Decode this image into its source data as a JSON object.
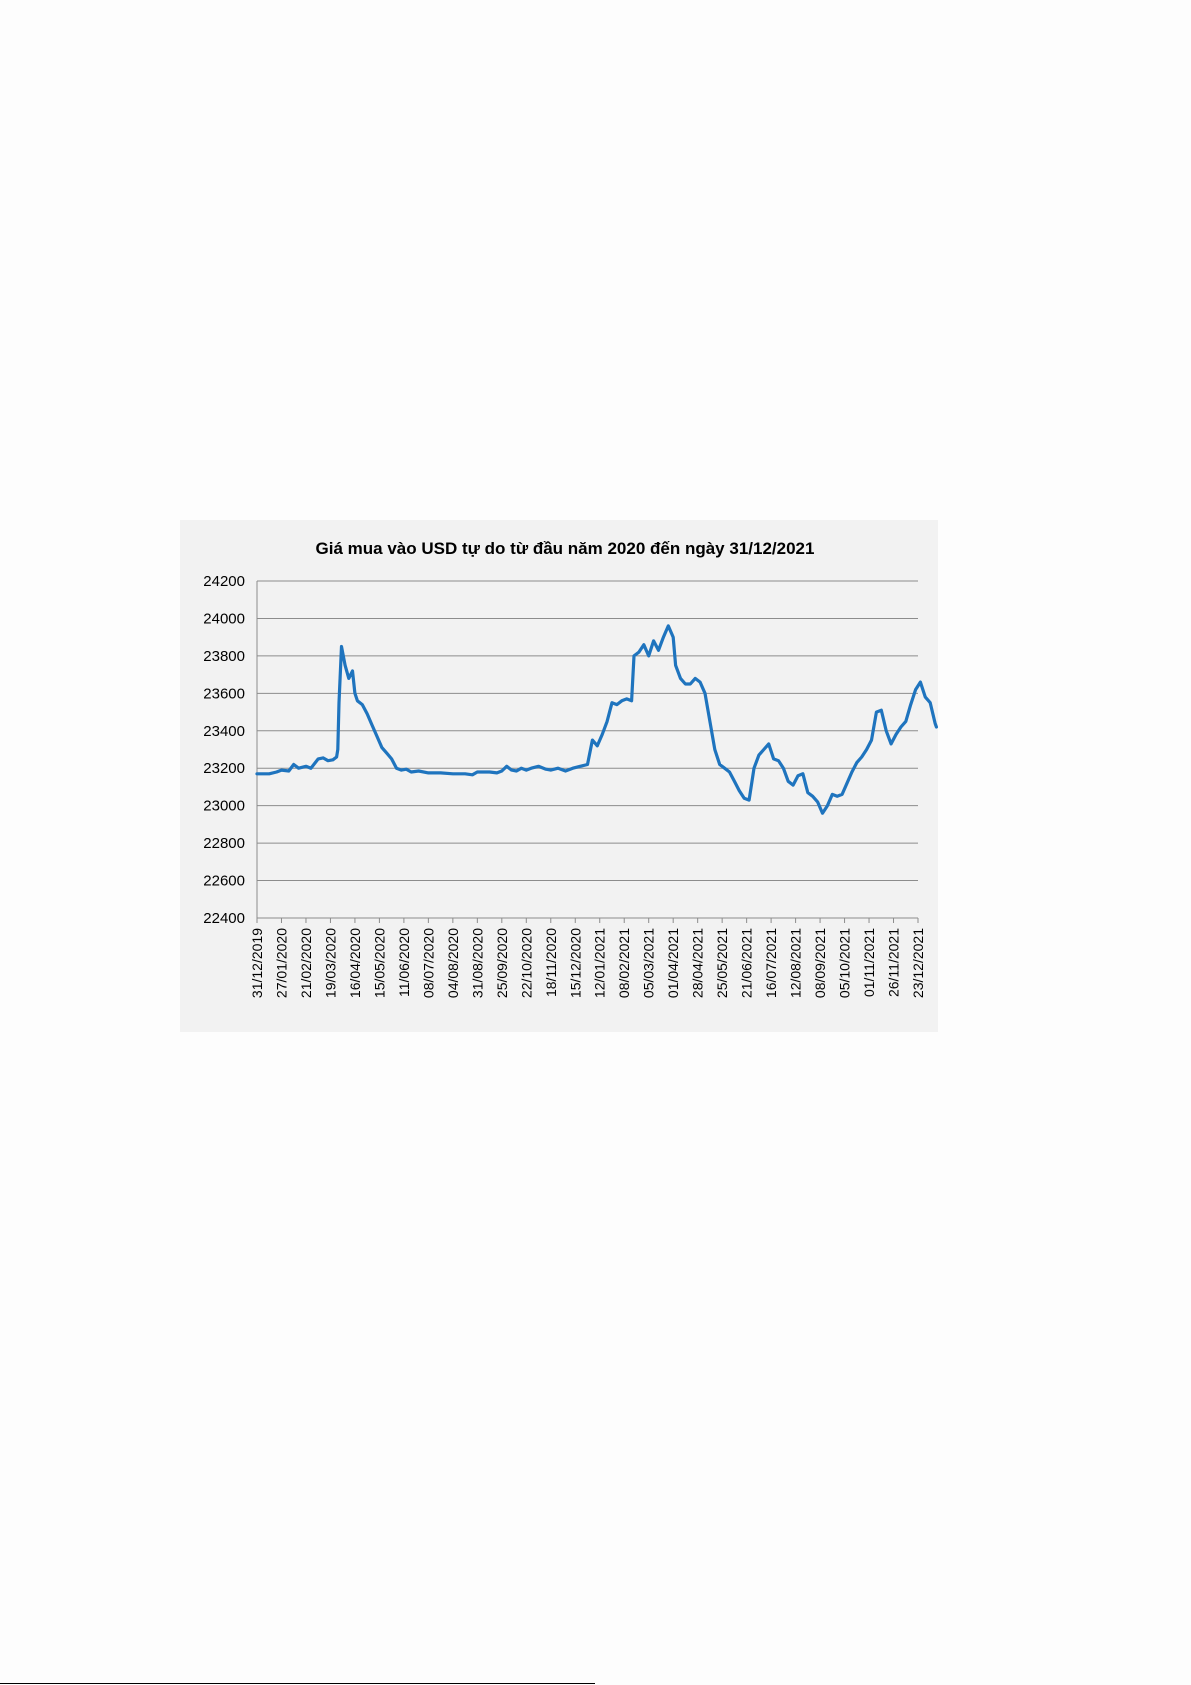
{
  "chart_data": {
    "type": "line",
    "title": "Giá mua vào USD tự do từ đầu năm 2020  đến ngày 31/12/2021",
    "xlabel": "",
    "ylabel": "",
    "ylim": [
      22400,
      24200
    ],
    "yticks": [
      22400,
      22600,
      22800,
      23000,
      23200,
      23400,
      23600,
      23800,
      24000,
      24200
    ],
    "grid": true,
    "legend": "none",
    "color": "#1f74be",
    "x_tick_labels": [
      "31/12/2019",
      "27/01/2020",
      "21/02/2020",
      "19/03/2020",
      "16/04/2020",
      "15/05/2020",
      "11/06/2020",
      "08/07/2020",
      "04/08/2020",
      "31/08/2020",
      "25/09/2020",
      "22/10/2020",
      "18/11/2020",
      "15/12/2020",
      "12/01/2021",
      "08/02/2021",
      "05/03/2021",
      "01/04/2021",
      "28/04/2021",
      "25/05/2021",
      "21/06/2021",
      "16/07/2021",
      "12/08/2021",
      "08/09/2021",
      "05/10/2021",
      "01/11/2021",
      "26/11/2021",
      "23/12/2021"
    ],
    "points": [
      [
        0,
        23170
      ],
      [
        0.5,
        23170
      ],
      [
        0.8,
        23180
      ],
      [
        1,
        23190
      ],
      [
        1.3,
        23185
      ],
      [
        1.5,
        23220
      ],
      [
        1.7,
        23200
      ],
      [
        2,
        23210
      ],
      [
        2.2,
        23200
      ],
      [
        2.5,
        23250
      ],
      [
        2.7,
        23255
      ],
      [
        2.9,
        23240
      ],
      [
        3.1,
        23245
      ],
      [
        3.25,
        23260
      ],
      [
        3.3,
        23300
      ],
      [
        3.35,
        23550
      ],
      [
        3.45,
        23850
      ],
      [
        3.6,
        23750
      ],
      [
        3.75,
        23680
      ],
      [
        3.9,
        23720
      ],
      [
        4,
        23600
      ],
      [
        4.1,
        23560
      ],
      [
        4.3,
        23540
      ],
      [
        4.5,
        23490
      ],
      [
        4.7,
        23430
      ],
      [
        4.9,
        23370
      ],
      [
        5.1,
        23310
      ],
      [
        5.3,
        23280
      ],
      [
        5.5,
        23250
      ],
      [
        5.7,
        23200
      ],
      [
        5.9,
        23190
      ],
      [
        6.1,
        23195
      ],
      [
        6.3,
        23180
      ],
      [
        6.6,
        23185
      ],
      [
        7,
        23175
      ],
      [
        7.5,
        23175
      ],
      [
        8,
        23170
      ],
      [
        8.5,
        23170
      ],
      [
        8.8,
        23165
      ],
      [
        9,
        23180
      ],
      [
        9.5,
        23180
      ],
      [
        9.8,
        23175
      ],
      [
        10,
        23185
      ],
      [
        10.2,
        23210
      ],
      [
        10.4,
        23190
      ],
      [
        10.6,
        23185
      ],
      [
        10.8,
        23200
      ],
      [
        11,
        23190
      ],
      [
        11.2,
        23200
      ],
      [
        11.5,
        23210
      ],
      [
        11.8,
        23195
      ],
      [
        12,
        23190
      ],
      [
        12.3,
        23200
      ],
      [
        12.6,
        23185
      ],
      [
        12.9,
        23200
      ],
      [
        13.2,
        23210
      ],
      [
        13.5,
        23220
      ],
      [
        13.7,
        23350
      ],
      [
        13.9,
        23320
      ],
      [
        14.1,
        23380
      ],
      [
        14.3,
        23450
      ],
      [
        14.5,
        23550
      ],
      [
        14.7,
        23540
      ],
      [
        14.9,
        23560
      ],
      [
        15.1,
        23570
      ],
      [
        15.3,
        23560
      ],
      [
        15.4,
        23800
      ],
      [
        15.6,
        23820
      ],
      [
        15.8,
        23860
      ],
      [
        16,
        23800
      ],
      [
        16.2,
        23880
      ],
      [
        16.4,
        23830
      ],
      [
        16.6,
        23900
      ],
      [
        16.8,
        23960
      ],
      [
        17,
        23900
      ],
      [
        17.1,
        23750
      ],
      [
        17.3,
        23680
      ],
      [
        17.5,
        23650
      ],
      [
        17.7,
        23650
      ],
      [
        17.9,
        23680
      ],
      [
        18.1,
        23660
      ],
      [
        18.3,
        23600
      ],
      [
        18.5,
        23450
      ],
      [
        18.7,
        23300
      ],
      [
        18.9,
        23220
      ],
      [
        19.1,
        23200
      ],
      [
        19.3,
        23180
      ],
      [
        19.5,
        23130
      ],
      [
        19.7,
        23080
      ],
      [
        19.9,
        23040
      ],
      [
        20.1,
        23030
      ],
      [
        20.3,
        23200
      ],
      [
        20.5,
        23270
      ],
      [
        20.7,
        23300
      ],
      [
        20.9,
        23330
      ],
      [
        21.1,
        23250
      ],
      [
        21.3,
        23240
      ],
      [
        21.5,
        23200
      ],
      [
        21.7,
        23130
      ],
      [
        21.9,
        23110
      ],
      [
        22.1,
        23160
      ],
      [
        22.3,
        23170
      ],
      [
        22.5,
        23070
      ],
      [
        22.7,
        23050
      ],
      [
        22.9,
        23020
      ],
      [
        23.1,
        22960
      ],
      [
        23.3,
        23000
      ],
      [
        23.5,
        23060
      ],
      [
        23.7,
        23050
      ],
      [
        23.9,
        23060
      ],
      [
        24.1,
        23120
      ],
      [
        24.3,
        23180
      ],
      [
        24.5,
        23230
      ],
      [
        24.7,
        23260
      ],
      [
        24.9,
        23300
      ],
      [
        25.1,
        23350
      ],
      [
        25.3,
        23500
      ],
      [
        25.5,
        23510
      ],
      [
        25.7,
        23400
      ],
      [
        25.9,
        23330
      ],
      [
        26.1,
        23380
      ],
      [
        26.3,
        23420
      ],
      [
        26.5,
        23450
      ],
      [
        26.7,
        23540
      ],
      [
        26.9,
        23620
      ],
      [
        27.1,
        23660
      ],
      [
        27.3,
        23580
      ],
      [
        27.5,
        23550
      ],
      [
        27.7,
        23440
      ],
      [
        27.75,
        23420
      ]
    ]
  }
}
